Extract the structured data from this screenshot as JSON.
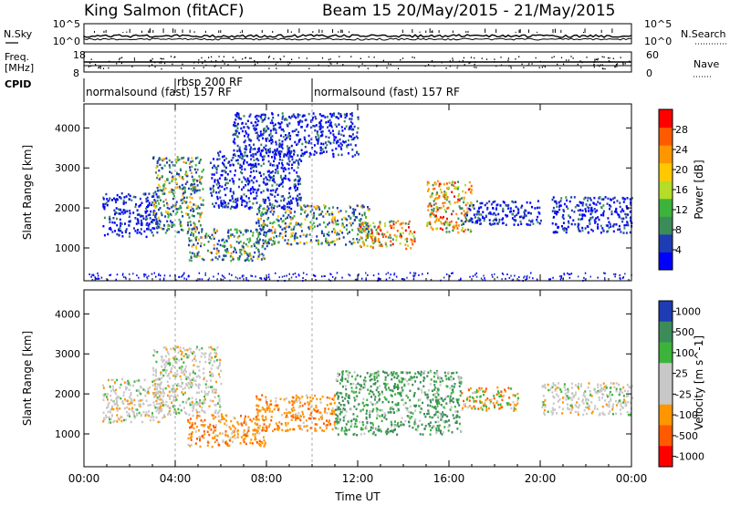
{
  "header": {
    "station": "King Salmon (fitACF)",
    "beam_info": "Beam 15 20/May/2015 - 21/May/2015"
  },
  "left_labels": {
    "nsky": "N.Sky",
    "freq_line1": "Freq.",
    "freq_line2": "[MHz]",
    "cpid": "CPID"
  },
  "right_labels": {
    "nsearch": "N.Search",
    "nave": "Nave"
  },
  "strip_ticks": {
    "noise_left_top": "10^5",
    "noise_left_bottom": "10^0",
    "noise_right_top": "10^5",
    "noise_right_bottom": "10^0",
    "freq_top": "18",
    "freq_bottom": "8",
    "nave_top": "60",
    "nave_bottom": "0"
  },
  "cpid_segments": [
    {
      "label": "normalsound (fast) 157 RF",
      "start_h": 0
    },
    {
      "label": "rbsp 200 RF",
      "start_h": 4
    },
    {
      "label": "normalsound (fast) 157 RF",
      "start_h": 10
    }
  ],
  "colors": {
    "power": [
      "#0000ff",
      "#1e3cb4",
      "#3c8c5a",
      "#3cb43c",
      "#b4dc28",
      "#ffc800",
      "#ff9600",
      "#ff5a00",
      "#ff0000"
    ],
    "velocity": [
      "#ff0000",
      "#ff5a00",
      "#ff9600",
      "#c8c8c8",
      "#c8c8c8",
      "#3cb43c",
      "#3c8c5a",
      "#1e3cb4"
    ]
  },
  "chart_data": [
    {
      "type": "heatmap",
      "panel": "power",
      "xlabel": "",
      "ylabel": "Slant Range [km]",
      "xlim_hours": [
        0,
        24
      ],
      "ylim_km": [
        180,
        4600
      ],
      "y_ticks": [
        "1000",
        "2000",
        "3000",
        "4000"
      ],
      "colorbar": {
        "label": "Power [dB]",
        "range": [
          0,
          32
        ],
        "ticks": [
          "4",
          "8",
          "12",
          "16",
          "20",
          "24",
          "28"
        ]
      },
      "scatter_regions_hours_km": [
        {
          "x": [
            0.8,
            3.2
          ],
          "y": [
            1300,
            2400
          ],
          "level": "low"
        },
        {
          "x": [
            3.0,
            5.2
          ],
          "y": [
            1400,
            3300
          ],
          "level": "mid"
        },
        {
          "x": [
            4.5,
            8.0
          ],
          "y": [
            700,
            1500
          ],
          "level": "mid"
        },
        {
          "x": [
            5.5,
            9.5
          ],
          "y": [
            2000,
            3500
          ],
          "level": "low"
        },
        {
          "x": [
            6.5,
            12.0
          ],
          "y": [
            3300,
            4400
          ],
          "level": "low"
        },
        {
          "x": [
            7.5,
            12.5
          ],
          "y": [
            1100,
            2100
          ],
          "level": "mid"
        },
        {
          "x": [
            12.0,
            14.5
          ],
          "y": [
            1000,
            1700
          ],
          "level": "high"
        },
        {
          "x": [
            15.0,
            17.0
          ],
          "y": [
            1400,
            2700
          ],
          "level": "high"
        },
        {
          "x": [
            16.5,
            20.0
          ],
          "y": [
            1600,
            2200
          ],
          "level": "low"
        },
        {
          "x": [
            20.5,
            24.0
          ],
          "y": [
            1400,
            2300
          ],
          "level": "low"
        }
      ],
      "ground_echo_km": [
        200,
        400
      ]
    },
    {
      "type": "heatmap",
      "panel": "velocity",
      "xlabel": "Time UT",
      "ylabel": "Slant Range [km]",
      "xlim_hours": [
        0,
        24
      ],
      "ylim_km": [
        180,
        4600
      ],
      "x_ticks": [
        "00:00",
        "04:00",
        "08:00",
        "12:00",
        "16:00",
        "20:00",
        "00:00"
      ],
      "y_ticks": [
        "1000",
        "2000",
        "3000",
        "4000"
      ],
      "colorbar": {
        "label": "Velocity [m s^-1]",
        "range": [
          -1250,
          1250
        ],
        "ticks": [
          "1000",
          "500",
          "100",
          "25",
          "-25",
          "-100",
          "-500",
          "-1000"
        ]
      },
      "scatter_regions_hours_km": [
        {
          "x": [
            0.8,
            3.5
          ],
          "y": [
            1300,
            2400
          ],
          "level": "slow"
        },
        {
          "x": [
            3.0,
            6.0
          ],
          "y": [
            1500,
            3200
          ],
          "level": "slow"
        },
        {
          "x": [
            4.5,
            8.0
          ],
          "y": [
            700,
            1500
          ],
          "level": "away"
        },
        {
          "x": [
            7.5,
            11.0
          ],
          "y": [
            1100,
            2000
          ],
          "level": "away"
        },
        {
          "x": [
            11.0,
            16.5
          ],
          "y": [
            1000,
            2600
          ],
          "level": "toward"
        },
        {
          "x": [
            16.5,
            19.0
          ],
          "y": [
            1600,
            2200
          ],
          "level": "mixed"
        },
        {
          "x": [
            20.0,
            24.0
          ],
          "y": [
            1500,
            2300
          ],
          "level": "slow"
        }
      ]
    }
  ]
}
